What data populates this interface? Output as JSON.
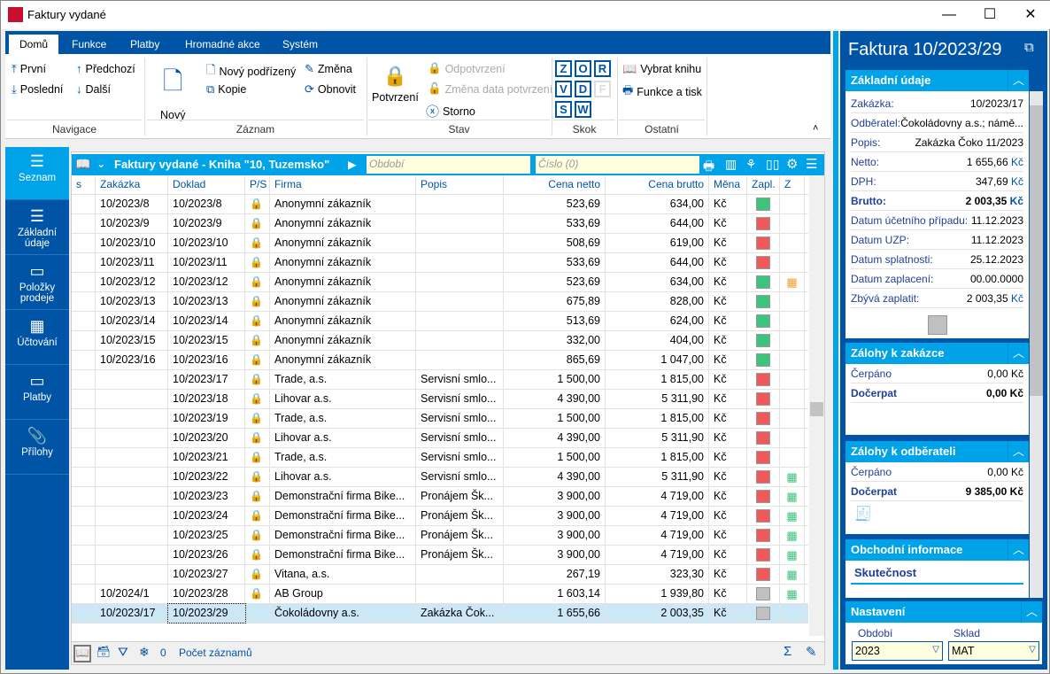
{
  "window": {
    "title": "Faktury vydané",
    "logo": "K2"
  },
  "ribbon": {
    "tabs": [
      "Domů",
      "Funkce",
      "Platby",
      "Hromadné akce",
      "Systém"
    ],
    "navigace": {
      "first": "První",
      "prev": "Předchozí",
      "last": "Poslední",
      "next": "Další",
      "group": "Navigace"
    },
    "zaznam": {
      "new": "Nový",
      "new_child": "Nový podřízený",
      "change": "Změna",
      "copy": "Kopie",
      "refresh": "Obnovit",
      "group": "Záznam"
    },
    "stav": {
      "confirm": "Potvrzení",
      "unconfirm": "Odpotvrzení",
      "change_date": "Změna data potvrzení",
      "storno": "Storno",
      "group": "Stav"
    },
    "skok": {
      "keys": [
        "Z",
        "O",
        "R",
        "V",
        "D",
        "F",
        "S",
        "W"
      ],
      "group": "Skok"
    },
    "ostatni": {
      "select_book": "Vybrat knihu",
      "print": "Funkce a tisk",
      "group": "Ostatní"
    }
  },
  "nav": [
    {
      "label": "Seznam",
      "icon": "menu-icon"
    },
    {
      "label": "Základní údaje",
      "icon": "list-icon"
    },
    {
      "label": "Položky prodeje",
      "icon": "box-icon"
    },
    {
      "label": "Účtování",
      "icon": "calculator-icon"
    },
    {
      "label": "Platby",
      "icon": "box-icon"
    },
    {
      "label": "Přílohy",
      "icon": "paperclip-icon"
    }
  ],
  "grid": {
    "title": "Faktury vydané - Kniha \"10, Tuzemsko\"",
    "period_placeholder": "Období",
    "number_placeholder": "Číslo (0)",
    "columns": [
      "s",
      "Zakázka",
      "Doklad",
      "P/S",
      "Firma",
      "Popis",
      "Cena netto",
      "Cena brutto",
      "Měna",
      "Zapl.",
      "Z"
    ],
    "rows": [
      [
        "",
        "10/2023/8",
        "10/2023/8",
        true,
        "Anonymní zákazník",
        "",
        "523,69",
        "634,00",
        "Kč",
        "green",
        ""
      ],
      [
        "",
        "10/2023/9",
        "10/2023/9",
        true,
        "Anonymní zákazník",
        "",
        "533,69",
        "644,00",
        "Kč",
        "red",
        ""
      ],
      [
        "",
        "10/2023/10",
        "10/2023/10",
        true,
        "Anonymní zákazník",
        "",
        "508,69",
        "619,00",
        "Kč",
        "red",
        ""
      ],
      [
        "",
        "10/2023/11",
        "10/2023/11",
        true,
        "Anonymní zákazník",
        "",
        "533,69",
        "644,00",
        "Kč",
        "red",
        ""
      ],
      [
        "",
        "10/2023/12",
        "10/2023/12",
        true,
        "Anonymní zákazník",
        "",
        "523,69",
        "634,00",
        "Kč",
        "green",
        "orange"
      ],
      [
        "",
        "10/2023/13",
        "10/2023/13",
        true,
        "Anonymní zákazník",
        "",
        "675,89",
        "828,00",
        "Kč",
        "green",
        ""
      ],
      [
        "",
        "10/2023/14",
        "10/2023/14",
        true,
        "Anonymní zákazník",
        "",
        "513,69",
        "624,00",
        "Kč",
        "green",
        ""
      ],
      [
        "",
        "10/2023/15",
        "10/2023/15",
        true,
        "Anonymní zákazník",
        "",
        "332,00",
        "404,00",
        "Kč",
        "green",
        ""
      ],
      [
        "",
        "10/2023/16",
        "10/2023/16",
        true,
        "Anonymní zákazník",
        "",
        "865,69",
        "1 047,00",
        "Kč",
        "green",
        ""
      ],
      [
        "",
        "",
        "10/2023/17",
        true,
        "Trade, a.s.",
        "Servisní smlo...",
        "1 500,00",
        "1 815,00",
        "Kč",
        "red",
        ""
      ],
      [
        "",
        "",
        "10/2023/18",
        true,
        "Lihovar a.s.",
        "Servisní smlo...",
        "4 390,00",
        "5 311,90",
        "Kč",
        "red",
        ""
      ],
      [
        "",
        "",
        "10/2023/19",
        true,
        "Trade, a.s.",
        "Servisní smlo...",
        "1 500,00",
        "1 815,00",
        "Kč",
        "red",
        ""
      ],
      [
        "",
        "",
        "10/2023/20",
        true,
        "Lihovar a.s.",
        "Servisní smlo...",
        "4 390,00",
        "5 311,90",
        "Kč",
        "red",
        ""
      ],
      [
        "",
        "",
        "10/2023/21",
        true,
        "Trade, a.s.",
        "Servisní smlo...",
        "1 500,00",
        "1 815,00",
        "Kč",
        "red",
        ""
      ],
      [
        "",
        "",
        "10/2023/22",
        true,
        "Lihovar a.s.",
        "Servisní smlo...",
        "4 390,00",
        "5 311,90",
        "Kč",
        "red",
        "green"
      ],
      [
        "",
        "",
        "10/2023/23",
        true,
        "Demonstrační firma Bike...",
        "Pronájem Šk...",
        "3 900,00",
        "4 719,00",
        "Kč",
        "red",
        "green"
      ],
      [
        "",
        "",
        "10/2023/24",
        true,
        "Demonstrační firma Bike...",
        "Pronájem Šk...",
        "3 900,00",
        "4 719,00",
        "Kč",
        "red",
        "green"
      ],
      [
        "",
        "",
        "10/2023/25",
        true,
        "Demonstrační firma Bike...",
        "Pronájem Šk...",
        "3 900,00",
        "4 719,00",
        "Kč",
        "red",
        "green"
      ],
      [
        "",
        "",
        "10/2023/26",
        true,
        "Demonstrační firma Bike...",
        "Pronájem Šk...",
        "3 900,00",
        "4 719,00",
        "Kč",
        "red",
        "green"
      ],
      [
        "",
        "",
        "10/2023/27",
        true,
        "Vitana, a.s.",
        "",
        "267,19",
        "323,30",
        "Kč",
        "red",
        "green"
      ],
      [
        "",
        "10/2024/1",
        "10/2023/28",
        true,
        "AB Group",
        "",
        "1 603,14",
        "1 939,80",
        "Kč",
        "gray",
        "green"
      ],
      [
        "",
        "10/2023/17",
        "10/2023/29",
        false,
        "Čokoládovny a.s.",
        "Zakázka Čok...",
        "1 655,66",
        "2 003,35",
        "Kč",
        "gray",
        ""
      ]
    ],
    "selected_row": 21,
    "filter_count": "0",
    "record_count_label": "Počet záznamů"
  },
  "colors": {
    "green": "#3cc47c",
    "red": "#f0595a",
    "gray": "#c0c0c0",
    "orange": "#f0a030",
    "accent": "#00a2e8",
    "brand": "#0054a6"
  },
  "panel": {
    "title": "Faktura 10/2023/29",
    "basic": {
      "title": "Základní údaje",
      "items": [
        [
          "Zakázka:",
          "10/2023/17"
        ],
        [
          "Odběratel:",
          "Čokoládovny a.s.; námě..."
        ],
        [
          "Popis:",
          "Zakázka Čoko 11/2023"
        ],
        [
          "Netto:",
          "1 655,66"
        ],
        [
          "DPH:",
          "347,69"
        ],
        [
          "Brutto:",
          "2 003,35"
        ],
        [
          "Datum účetního případu:",
          "11.12.2023"
        ],
        [
          "Datum UZP:",
          "11.12.2023"
        ],
        [
          "Datum splatnosti:",
          "25.12.2023"
        ],
        [
          "Datum zaplacení:",
          "00.00.0000"
        ],
        [
          "Zbývá zaplatit:",
          "2 003,35"
        ]
      ],
      "currency": "Kč"
    },
    "order_adv": {
      "title": "Zálohy k zakázce",
      "drawn_label": "Čerpáno",
      "drawn": "0,00 Kč",
      "remaining_label": "Dočerpat",
      "remaining": "0,00 Kč"
    },
    "cust_adv": {
      "title": "Zálohy k odběrateli",
      "drawn_label": "Čerpáno",
      "drawn": "0,00 Kč",
      "remaining_label": "Dočerpat",
      "remaining": "9 385,00 Kč"
    },
    "business": {
      "title": "Obchodní informace",
      "tab": "Skutečnost"
    },
    "settings": {
      "title": "Nastavení",
      "period_label": "Období",
      "period": "2023",
      "store_label": "Sklad",
      "store": "MAT"
    }
  }
}
